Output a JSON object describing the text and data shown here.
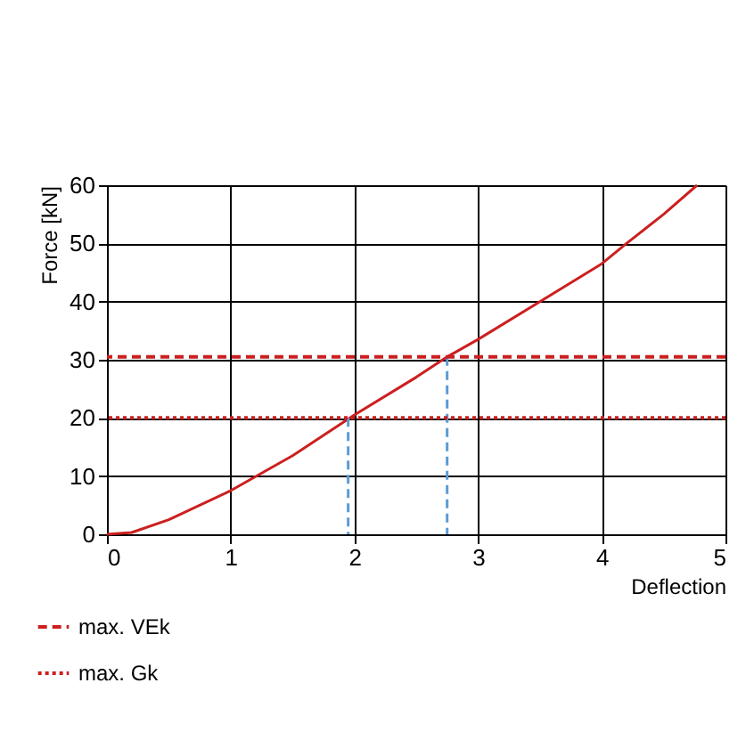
{
  "chart_data": {
    "type": "line",
    "xlabel": "Deflection",
    "ylabel": "Force [kN]",
    "xlim": [
      0,
      5
    ],
    "ylim": [
      0,
      60
    ],
    "xticks": [
      0,
      1,
      2,
      3,
      4,
      5
    ],
    "yticks": [
      0,
      10,
      20,
      30,
      40,
      50,
      60
    ],
    "grid": true,
    "legend": "bottom left",
    "line_style": "solid",
    "marker": "none",
    "series": [
      {
        "color": "#cc1f1f",
        "x": [
          0,
          0.2,
          0.5,
          1,
          1.5,
          2,
          2.5,
          2.75,
          3,
          3.5,
          4,
          4.2,
          4.5,
          4.77
        ],
        "values": [
          0,
          0.3,
          2.5,
          7.5,
          13.5,
          20.5,
          27,
          30.5,
          33.5,
          40,
          46.5,
          50,
          55,
          60
        ]
      },
      {
        "type": "line",
        "color": "#5b9bd5",
        "line_style": "dashed",
        "x": [
          1.95,
          1.95
        ],
        "values": [
          20,
          0
        ]
      },
      {
        "type": "line",
        "color": "#5b9bd5",
        "line_style": "dashed",
        "x": [
          2.75,
          2.75
        ],
        "values": [
          30.5,
          0
        ]
      }
    ],
    "ref_lines": [
      {
        "axis": "y",
        "value": 30.5,
        "label": "max. VEk",
        "color": "#cc1f1f",
        "line_style": "dashed"
      },
      {
        "axis": "y",
        "value": 20,
        "label": "max. Gk",
        "color": "#cc1f1f",
        "line_style": "dotted"
      }
    ]
  }
}
